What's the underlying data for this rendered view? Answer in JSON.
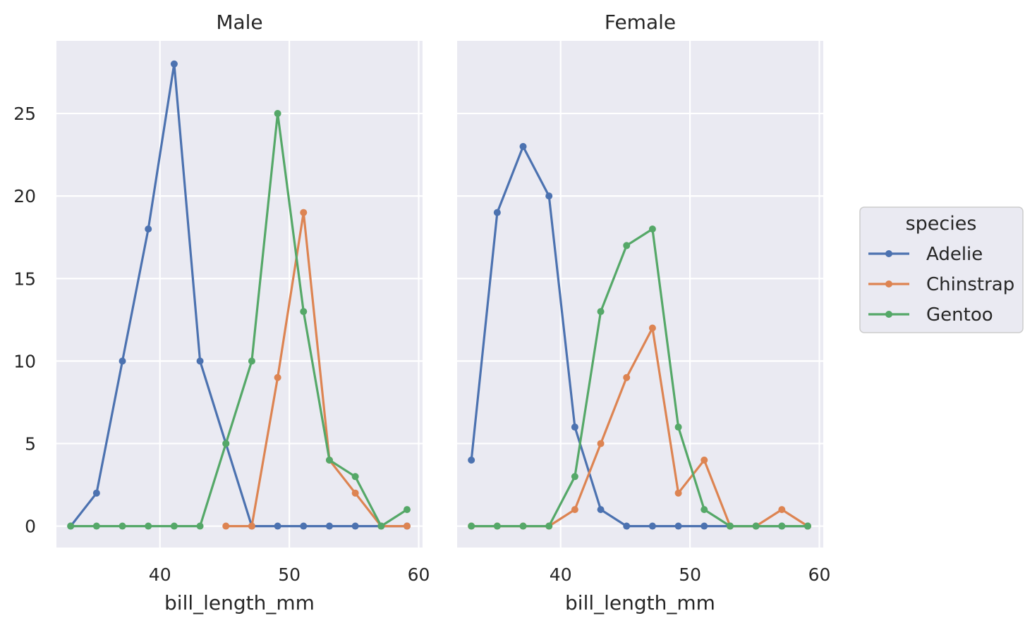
{
  "chart_data": {
    "type": "line",
    "ylim": [
      -1.3,
      29.4
    ],
    "yticks": [
      0,
      5,
      10,
      15,
      20,
      25
    ],
    "xlim": [
      32,
      60.3
    ],
    "xticks": [
      40,
      50,
      60
    ],
    "grid": true,
    "legend_placement": "right",
    "legend": {
      "title": "species",
      "entries": [
        {
          "name": "Adelie",
          "color": "#4c72b0"
        },
        {
          "name": "Chinstrap",
          "color": "#dd8452"
        },
        {
          "name": "Gentoo",
          "color": "#55a868"
        }
      ]
    },
    "panels": [
      {
        "title": "Male",
        "xlabel": "bill_length_mm",
        "series": [
          {
            "name": "Adelie",
            "x": [
              33.1,
              35.1,
              37.1,
              39.1,
              41.1,
              43.1,
              45.1,
              47.1,
              49.1,
              51.1,
              53.1,
              55.1,
              57.1,
              59.1
            ],
            "y": [
              0,
              2,
              10,
              18,
              28,
              10,
              5,
              0,
              0,
              0,
              0,
              0,
              0,
              0
            ]
          },
          {
            "name": "Chinstrap",
            "x": [
              45.1,
              47.1,
              49.1,
              51.1,
              53.1,
              55.1,
              57.1,
              59.1
            ],
            "y": [
              0,
              0,
              9,
              19,
              4,
              2,
              0,
              0
            ]
          },
          {
            "name": "Gentoo",
            "x": [
              33.1,
              35.1,
              37.1,
              39.1,
              41.1,
              43.1,
              45.1,
              47.1,
              49.1,
              51.1,
              53.1,
              55.1,
              57.1,
              59.1
            ],
            "y": [
              0,
              0,
              0,
              0,
              0,
              0,
              5,
              10,
              25,
              13,
              4,
              3,
              0,
              1
            ]
          }
        ]
      },
      {
        "title": "Female",
        "xlabel": "bill_length_mm",
        "series": [
          {
            "name": "Adelie",
            "x": [
              33.1,
              35.1,
              37.1,
              39.1,
              41.1,
              43.1,
              45.1,
              47.1,
              49.1,
              51.1,
              53.1,
              55.1,
              57.1,
              59.1
            ],
            "y": [
              4,
              19,
              23,
              20,
              6,
              1,
              0,
              0,
              0,
              0,
              0,
              0,
              0,
              0
            ]
          },
          {
            "name": "Chinstrap",
            "x": [
              33.1,
              35.1,
              37.1,
              39.1,
              41.1,
              43.1,
              45.1,
              47.1,
              49.1,
              51.1,
              53.1,
              55.1,
              57.1,
              59.1
            ],
            "y": [
              0,
              0,
              0,
              0,
              1,
              5,
              9,
              12,
              2,
              4,
              0,
              0,
              1,
              0
            ]
          },
          {
            "name": "Gentoo",
            "x": [
              33.1,
              35.1,
              37.1,
              39.1,
              41.1,
              43.1,
              45.1,
              47.1,
              49.1,
              51.1,
              53.1,
              55.1,
              57.1,
              59.1
            ],
            "y": [
              0,
              0,
              0,
              0,
              3,
              13,
              17,
              18,
              6,
              1,
              0,
              0,
              0,
              0
            ]
          }
        ]
      }
    ]
  }
}
